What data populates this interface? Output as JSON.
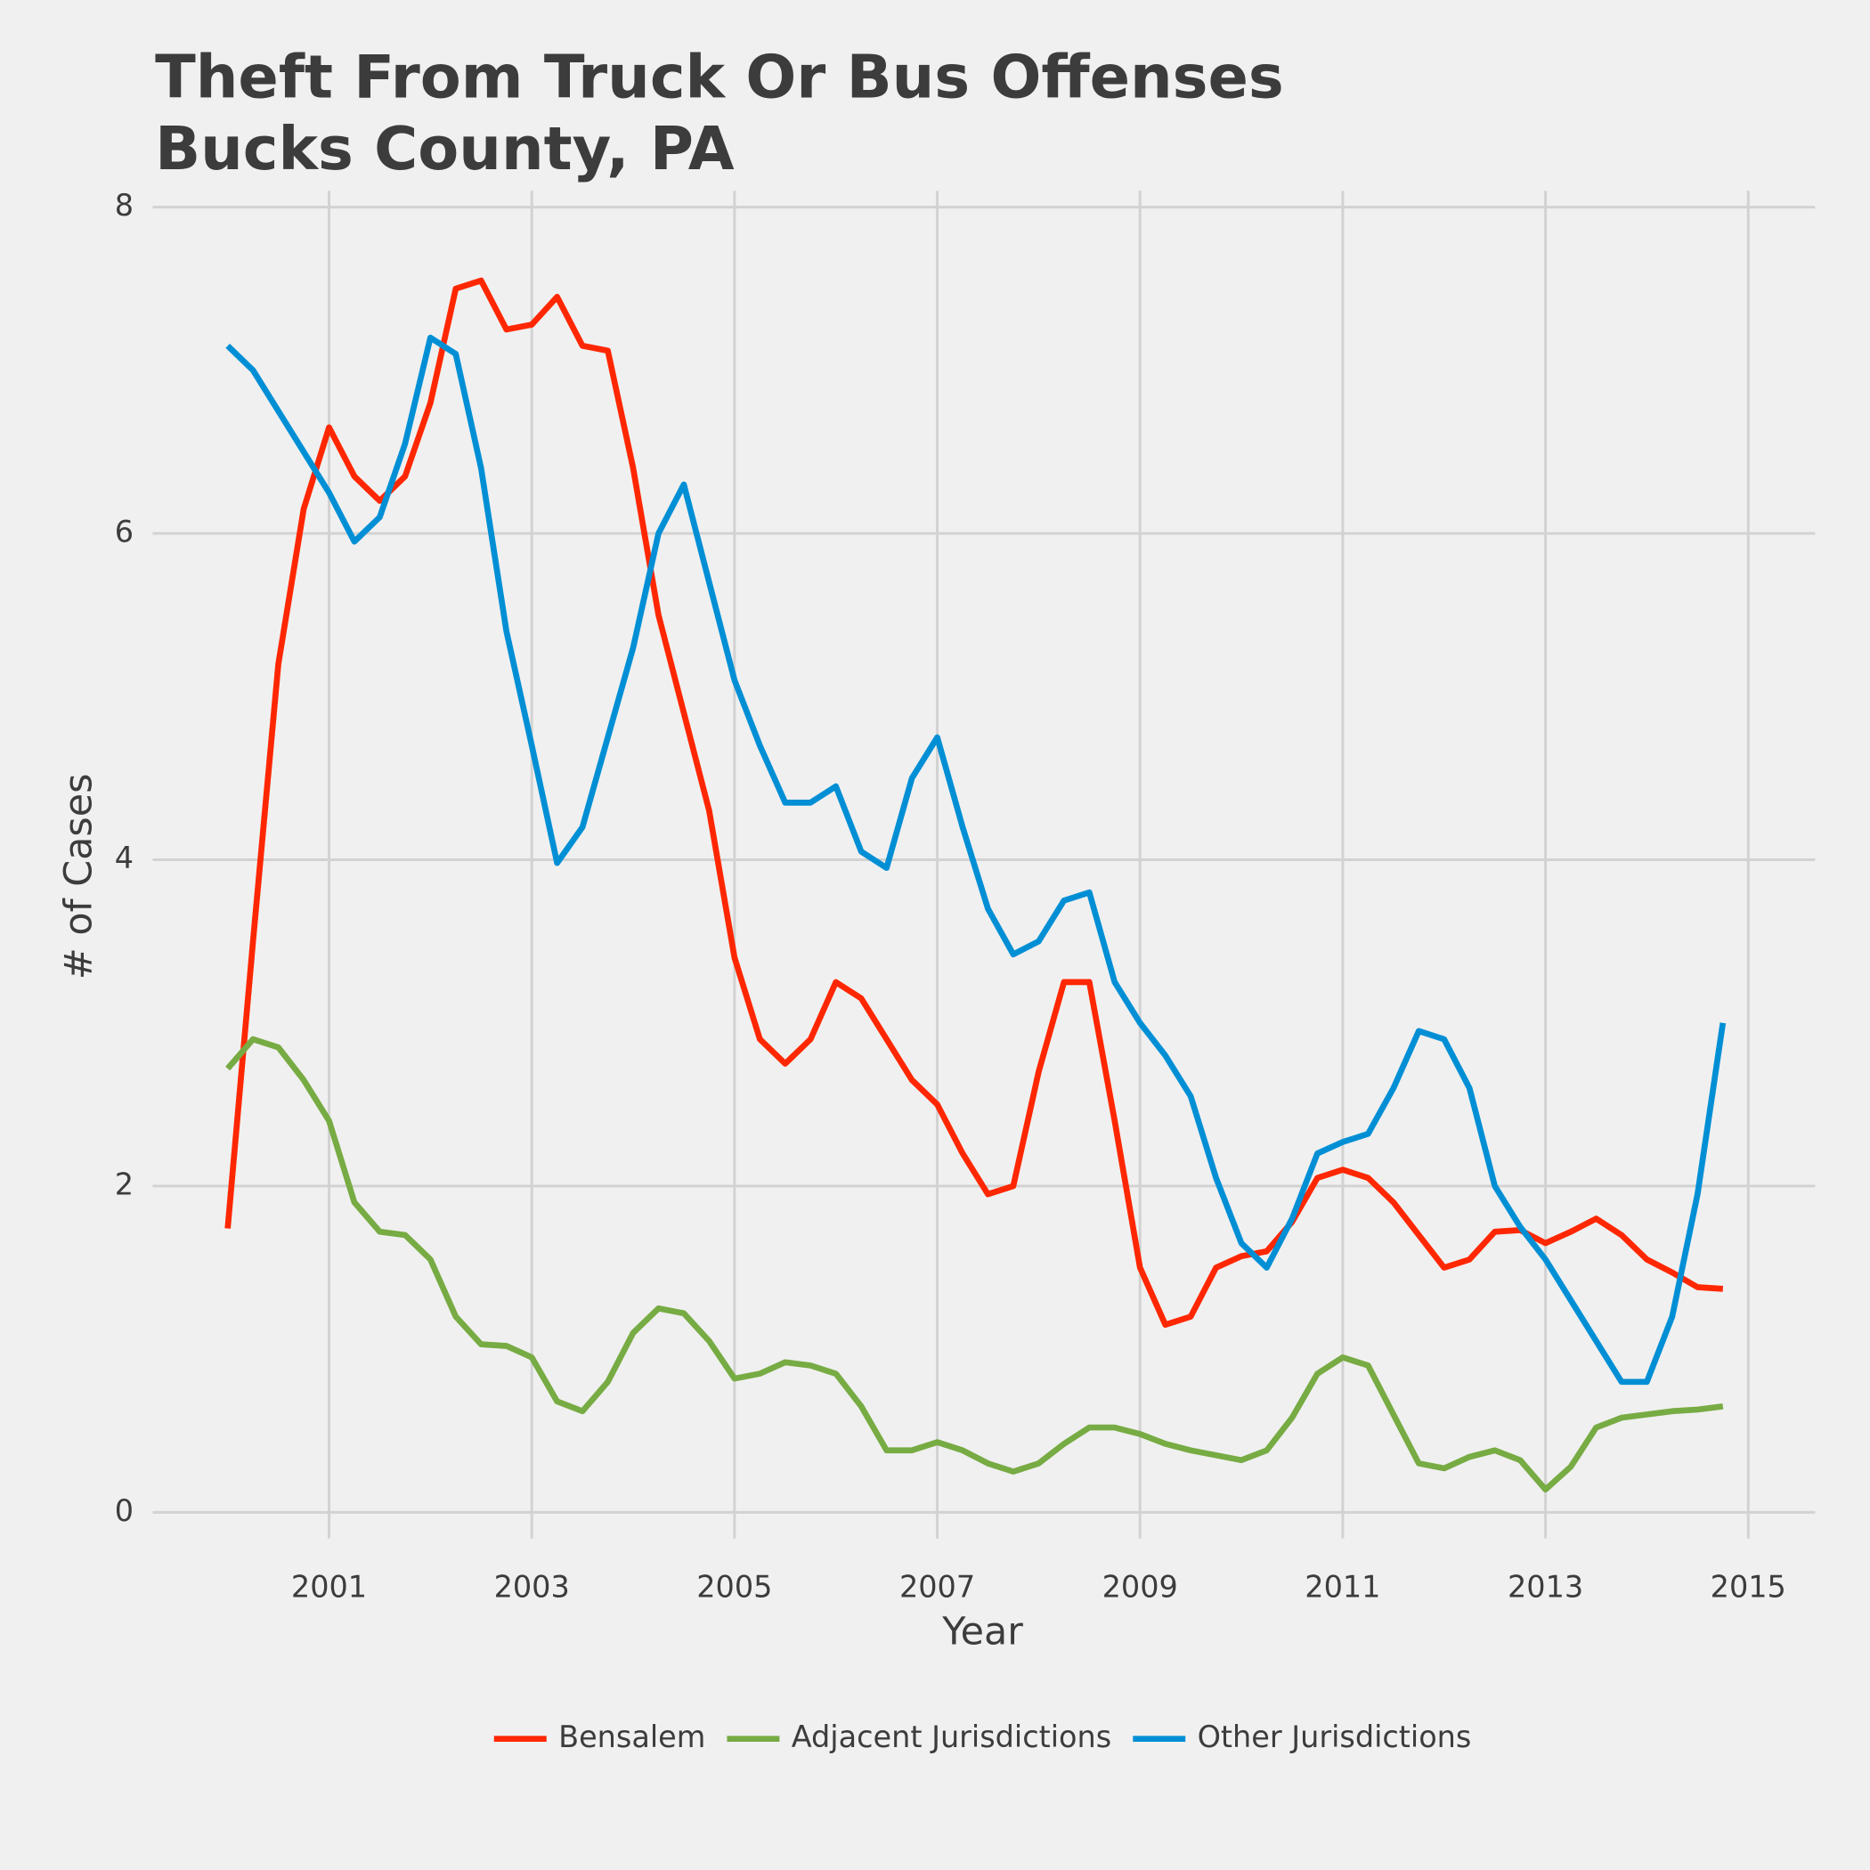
{
  "chart_data": {
    "type": "line",
    "title": [
      "Theft From Truck Or Bus Offenses",
      "Bucks County, PA"
    ],
    "x_label": "Year",
    "y_label": "# of Cases",
    "x": [
      2000,
      2000.25,
      2000.5,
      2000.75,
      2001,
      2001.25,
      2001.5,
      2001.75,
      2002,
      2002.25,
      2002.5,
      2002.75,
      2003,
      2003.25,
      2003.5,
      2003.75,
      2004,
      2004.25,
      2004.5,
      2004.75,
      2005,
      2005.25,
      2005.5,
      2005.75,
      2006,
      2006.25,
      2006.5,
      2006.75,
      2007,
      2007.25,
      2007.5,
      2007.75,
      2008,
      2008.25,
      2008.5,
      2008.75,
      2009,
      2009.25,
      2009.5,
      2009.75,
      2010,
      2010.25,
      2010.5,
      2010.75,
      2011,
      2011.25,
      2011.5,
      2011.75,
      2012,
      2012.25,
      2012.5,
      2012.75,
      2013,
      2013.25,
      2013.5,
      2013.75,
      2014,
      2014.25,
      2014.5,
      2014.75
    ],
    "series": [
      {
        "name": "Bensalem",
        "color": "#ff2700",
        "values": [
          1.74,
          3.5,
          5.2,
          6.15,
          6.65,
          6.35,
          6.2,
          6.35,
          6.8,
          7.5,
          7.55,
          7.25,
          7.28,
          7.45,
          7.15,
          7.12,
          6.4,
          5.5,
          4.9,
          4.3,
          3.4,
          2.9,
          2.75,
          2.9,
          3.25,
          3.15,
          2.9,
          2.65,
          2.5,
          2.2,
          1.95,
          2.0,
          2.7,
          3.25,
          3.25,
          2.4,
          1.5,
          1.15,
          1.2,
          1.5,
          1.57,
          1.6,
          1.78,
          2.05,
          2.1,
          2.05,
          1.9,
          1.7,
          1.5,
          1.55,
          1.72,
          1.73,
          1.65,
          1.72,
          1.8,
          1.7,
          1.55,
          1.47,
          1.38,
          1.37
        ]
      },
      {
        "name": "Adjacent Jurisdictions",
        "color": "#77ab43",
        "values": [
          2.72,
          2.9,
          2.85,
          2.65,
          2.4,
          1.9,
          1.72,
          1.7,
          1.55,
          1.2,
          1.03,
          1.02,
          0.95,
          0.68,
          0.62,
          0.8,
          1.1,
          1.25,
          1.22,
          1.05,
          0.82,
          0.85,
          0.92,
          0.9,
          0.85,
          0.65,
          0.38,
          0.38,
          0.43,
          0.38,
          0.3,
          0.25,
          0.3,
          0.42,
          0.52,
          0.52,
          0.48,
          0.42,
          0.38,
          0.35,
          0.32,
          0.38,
          0.58,
          0.85,
          0.95,
          0.9,
          0.6,
          0.3,
          0.27,
          0.34,
          0.38,
          0.32,
          0.14,
          0.28,
          0.52,
          0.58,
          0.6,
          0.62,
          0.63,
          0.65
        ]
      },
      {
        "name": "Other Jurisdictions",
        "color": "#008fd5",
        "values": [
          7.15,
          7.0,
          6.75,
          6.5,
          6.25,
          5.95,
          6.1,
          6.55,
          7.2,
          7.1,
          6.4,
          5.4,
          4.7,
          3.98,
          4.2,
          4.75,
          5.3,
          6.0,
          6.3,
          5.7,
          5.1,
          4.7,
          4.35,
          4.35,
          4.45,
          4.05,
          3.95,
          4.5,
          4.75,
          4.2,
          3.7,
          3.42,
          3.5,
          3.75,
          3.8,
          3.25,
          3.0,
          2.8,
          2.55,
          2.05,
          1.65,
          1.5,
          1.8,
          2.2,
          2.27,
          2.32,
          2.6,
          2.95,
          2.9,
          2.6,
          2.0,
          1.75,
          1.55,
          1.3,
          1.05,
          0.8,
          0.8,
          1.2,
          1.95,
          3.0
        ]
      }
    ],
    "xlim": [
      1999.26,
      2015.66
    ],
    "ylim": [
      -0.16,
      8.1
    ],
    "xticks": [
      2001,
      2003,
      2005,
      2007,
      2009,
      2011,
      2013,
      2015
    ],
    "yticks": [
      0,
      2,
      4,
      6,
      8
    ],
    "grid": true,
    "legend": "bottom"
  }
}
